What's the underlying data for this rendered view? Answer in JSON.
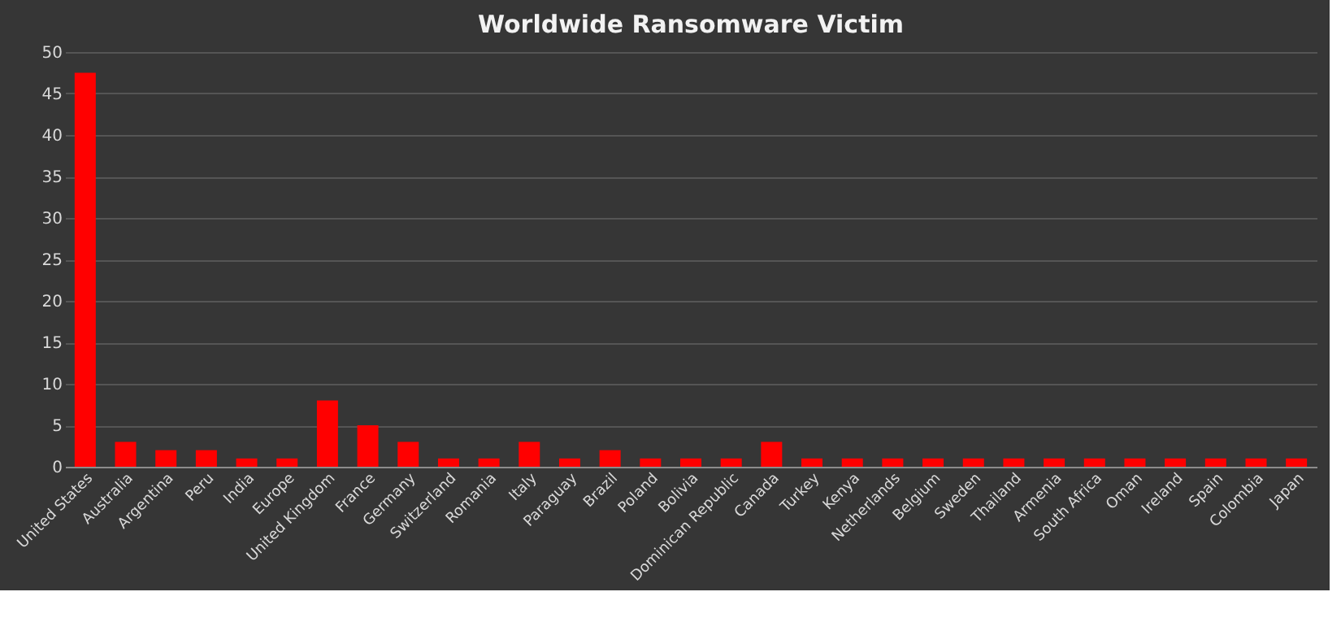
{
  "chart_data": {
    "type": "bar",
    "title": "Worldwide Ransomware Victim",
    "categories": [
      "United States",
      "Australia",
      "Argentina",
      "Peru",
      "India",
      "Europe",
      "United Kingdom",
      "France",
      "Germany",
      "Switzerland",
      "Romania",
      "Italy",
      "Paraguay",
      "Brazil",
      "Poland",
      "Bolivia",
      "Dominican Republic",
      "Canada",
      "Turkey",
      "Kenya",
      "Netherlands",
      "Belgium",
      "Sweden",
      "Thailand",
      "Armenia",
      "South Africa",
      "Oman",
      "Ireland",
      "Spain",
      "Colombia",
      "Japan"
    ],
    "values": [
      47.5,
      3,
      2,
      2,
      1,
      1,
      8,
      5,
      3,
      1,
      1,
      3,
      1,
      2,
      1,
      1,
      1,
      3,
      1,
      1,
      1,
      1,
      1,
      1,
      1,
      1,
      1,
      1,
      1,
      1,
      1
    ],
    "color": "#ff0000",
    "ylim": [
      0,
      50
    ],
    "yticks": [
      0,
      5,
      10,
      15,
      20,
      25,
      30,
      35,
      40,
      45,
      50
    ],
    "grid": "y"
  }
}
